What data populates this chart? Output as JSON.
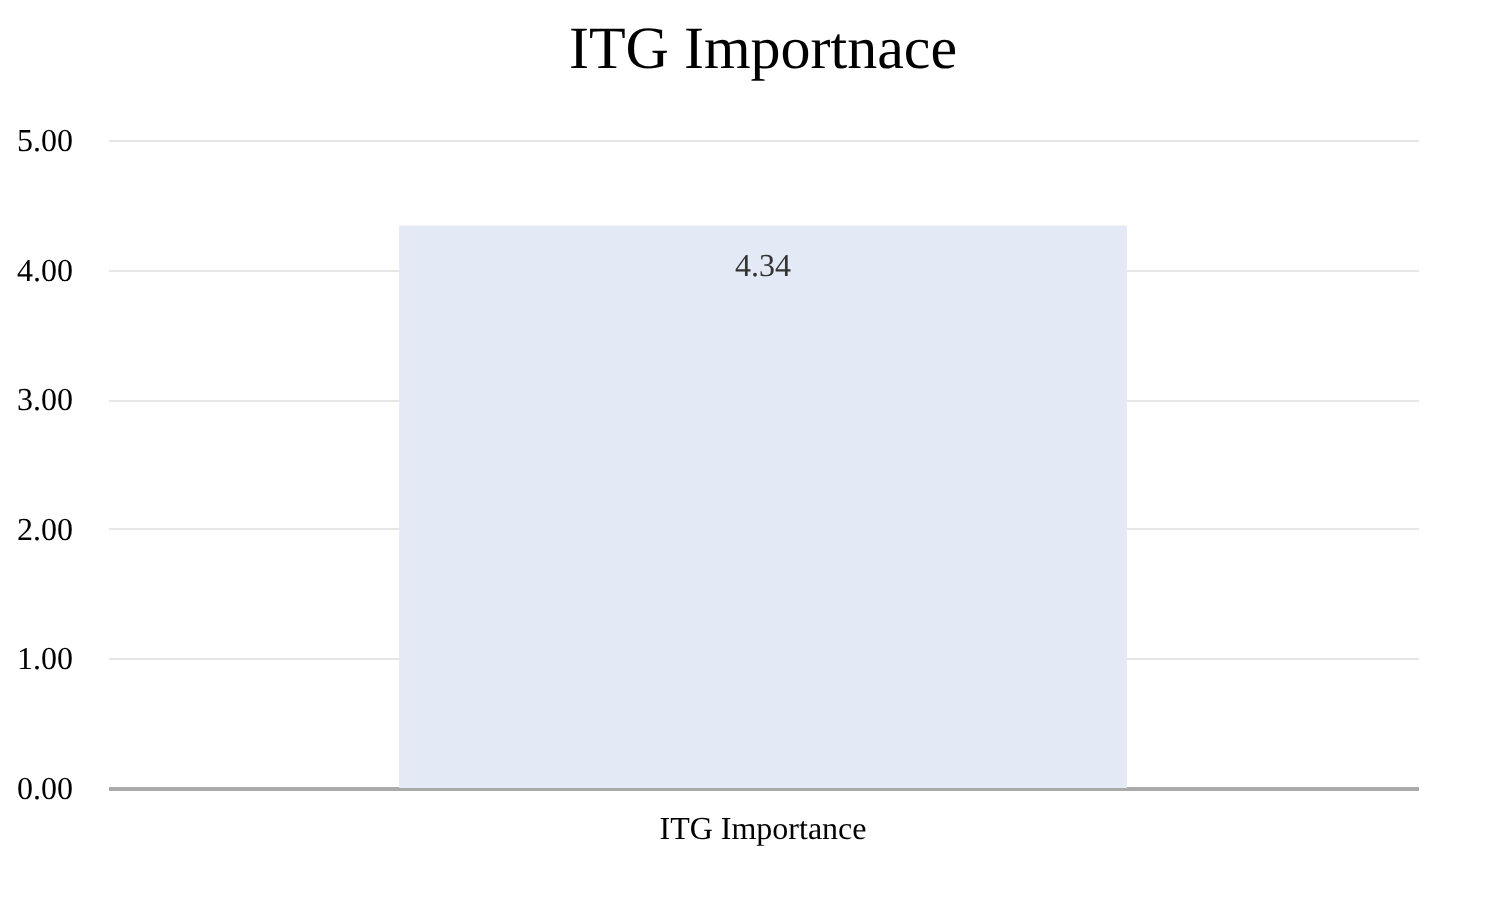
{
  "chart_data": {
    "type": "bar",
    "title": "ITG Importnace",
    "categories": [
      "ITG Importance"
    ],
    "values": [
      4.34
    ],
    "color": "#e3eaf6",
    "ylim": [
      0,
      5
    ],
    "yticks": [
      {
        "value": 0,
        "label": "0.00"
      },
      {
        "value": 1,
        "label": "1.00"
      },
      {
        "value": 2,
        "label": "2.00"
      },
      {
        "value": 3,
        "label": "3.00"
      },
      {
        "value": 4,
        "label": "4.00"
      },
      {
        "value": 5,
        "label": "5.00"
      }
    ],
    "grid": "y",
    "data_labels": true
  }
}
